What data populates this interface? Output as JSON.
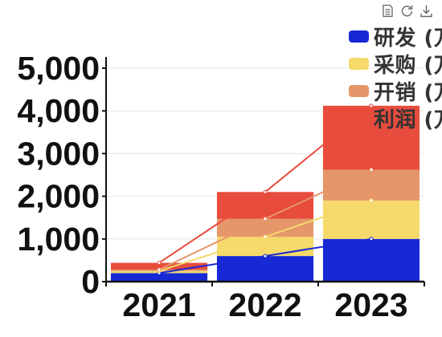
{
  "toolbox": {
    "icons": [
      "data-view-icon",
      "restore-icon",
      "save-as-image-icon"
    ]
  },
  "legend": {
    "items": [
      {
        "label": "研发 (万",
        "color": "#1729d4",
        "show_swatch": true
      },
      {
        "label": "采购 (万",
        "color": "#f5d96b",
        "show_swatch": true
      },
      {
        "label": "开销 (万",
        "color": "#e5976a",
        "show_swatch": true
      },
      {
        "label": "利润 (万",
        "color": "#e84c3d",
        "show_swatch": false
      }
    ]
  },
  "chart_data": {
    "type": "bar",
    "stacked": true,
    "categories": [
      "2021",
      "2022",
      "2023"
    ],
    "ylim": [
      0,
      5000
    ],
    "yticks": [
      "0",
      "1,000",
      "2,000",
      "3,000",
      "4,000",
      "5,000"
    ],
    "series": [
      {
        "name": "研发 (万",
        "color": "#1729d4",
        "values": [
          200,
          600,
          1000
        ]
      },
      {
        "name": "采购 (万",
        "color": "#f5d96b",
        "values": [
          50,
          450,
          900
        ]
      },
      {
        "name": "开销 (万",
        "color": "#e5976a",
        "values": [
          30,
          420,
          720
        ]
      },
      {
        "name": "利润 (万",
        "color": "#e84c3d",
        "values": [
          160,
          630,
          1500
        ]
      }
    ],
    "grid": true,
    "legend_position": "top-right"
  }
}
